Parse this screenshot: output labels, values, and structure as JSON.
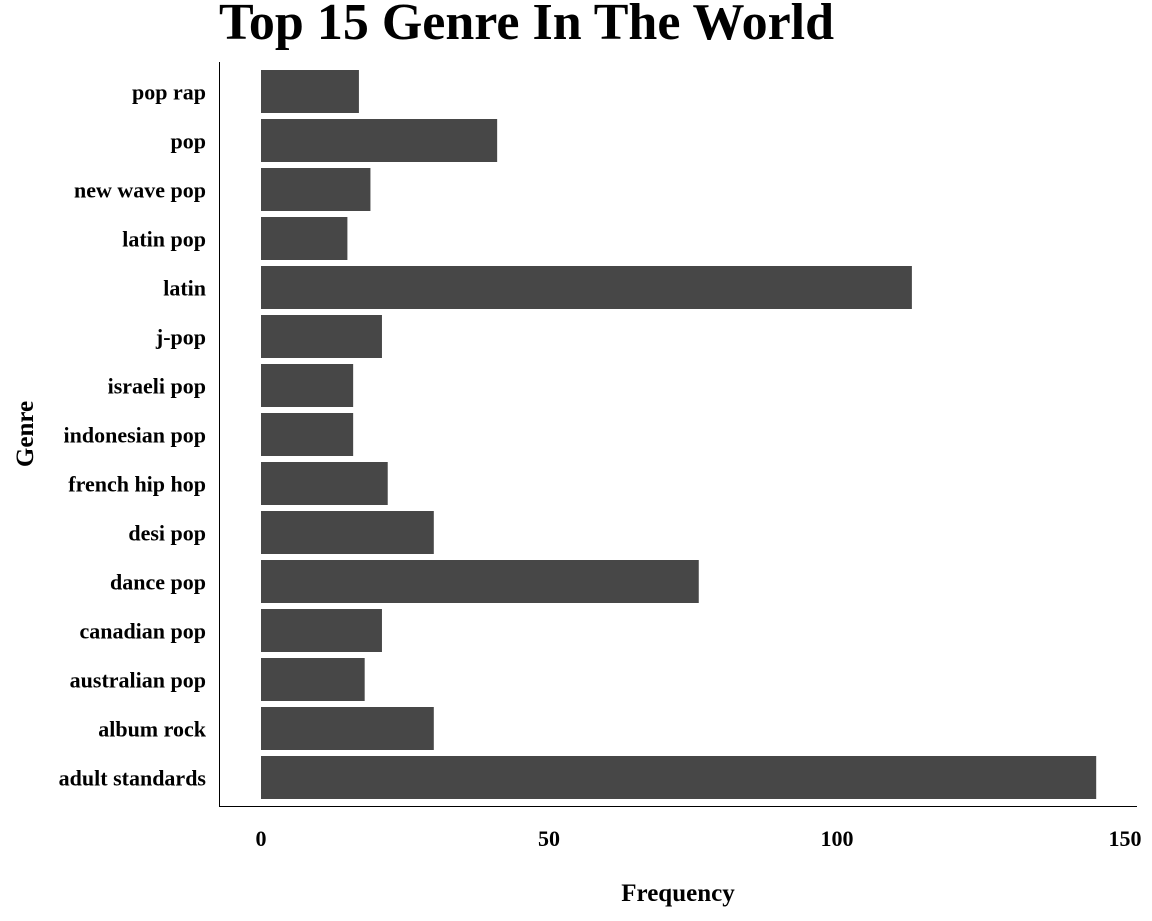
{
  "chart_data": {
    "type": "bar",
    "orientation": "horizontal",
    "title": "Top 15 Genre In The World",
    "xlabel": "Frequency",
    "ylabel": "Genre",
    "categories": [
      "pop rap",
      "pop",
      "new wave pop",
      "latin pop",
      "latin",
      "j-pop",
      "israeli pop",
      "indonesian pop",
      "french hip hop",
      "desi pop",
      "dance pop",
      "canadian pop",
      "australian pop",
      "album rock",
      "adult standards"
    ],
    "values": [
      17,
      41,
      19,
      15,
      113,
      21,
      16,
      16,
      22,
      30,
      76,
      21,
      18,
      30,
      145
    ],
    "xlim": [
      0,
      150
    ],
    "xticks": [
      "0",
      "50",
      "100",
      "150"
    ],
    "bar_color": "#474747",
    "grid": false,
    "legend": "none"
  }
}
